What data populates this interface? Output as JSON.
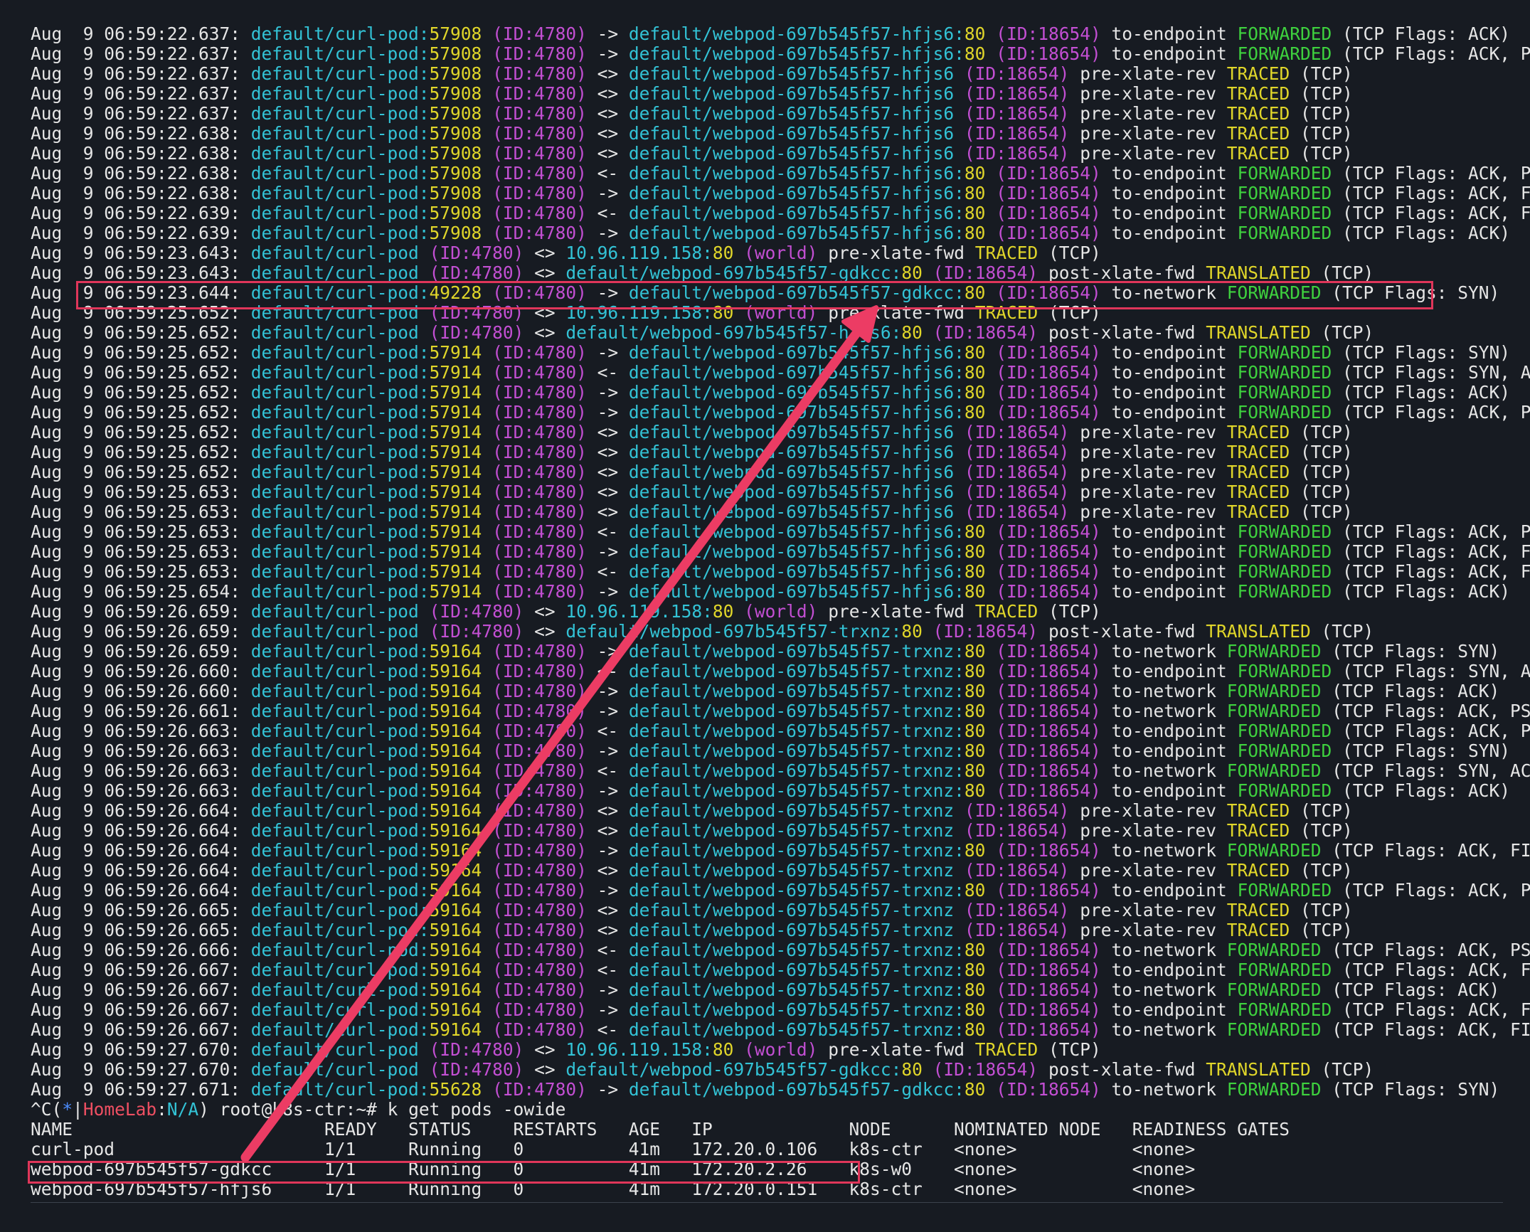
{
  "log_lines": [
    [
      "Aug  9 06:59:22.637:",
      "default/curl-pod:",
      "57908",
      "(ID:4780)",
      "->",
      "default/webpod-697b545f57-hfjs6:",
      "80",
      "(ID:18654)",
      "to-endpoint",
      "FORWARDED",
      "(TCP Flags: ACK)"
    ],
    [
      "Aug  9 06:59:22.637:",
      "default/curl-pod:",
      "57908",
      "(ID:4780)",
      "->",
      "default/webpod-697b545f57-hfjs6:",
      "80",
      "(ID:18654)",
      "to-endpoint",
      "FORWARDED",
      "(TCP Flags: ACK, PSH)"
    ],
    [
      "Aug  9 06:59:22.637:",
      "default/curl-pod:",
      "57908",
      "(ID:4780)",
      "<>",
      "default/webpod-697b545f57-hfjs6",
      "",
      "(ID:18654)",
      "pre-xlate-rev",
      "TRACED",
      "(TCP)"
    ],
    [
      "Aug  9 06:59:22.637:",
      "default/curl-pod:",
      "57908",
      "(ID:4780)",
      "<>",
      "default/webpod-697b545f57-hfjs6",
      "",
      "(ID:18654)",
      "pre-xlate-rev",
      "TRACED",
      "(TCP)"
    ],
    [
      "Aug  9 06:59:22.637:",
      "default/curl-pod:",
      "57908",
      "(ID:4780)",
      "<>",
      "default/webpod-697b545f57-hfjs6",
      "",
      "(ID:18654)",
      "pre-xlate-rev",
      "TRACED",
      "(TCP)"
    ],
    [
      "Aug  9 06:59:22.638:",
      "default/curl-pod:",
      "57908",
      "(ID:4780)",
      "<>",
      "default/webpod-697b545f57-hfjs6",
      "",
      "(ID:18654)",
      "pre-xlate-rev",
      "TRACED",
      "(TCP)"
    ],
    [
      "Aug  9 06:59:22.638:",
      "default/curl-pod:",
      "57908",
      "(ID:4780)",
      "<>",
      "default/webpod-697b545f57-hfjs6",
      "",
      "(ID:18654)",
      "pre-xlate-rev",
      "TRACED",
      "(TCP)"
    ],
    [
      "Aug  9 06:59:22.638:",
      "default/curl-pod:",
      "57908",
      "(ID:4780)",
      "<-",
      "default/webpod-697b545f57-hfjs6:",
      "80",
      "(ID:18654)",
      "to-endpoint",
      "FORWARDED",
      "(TCP Flags: ACK, PSH)"
    ],
    [
      "Aug  9 06:59:22.638:",
      "default/curl-pod:",
      "57908",
      "(ID:4780)",
      "->",
      "default/webpod-697b545f57-hfjs6:",
      "80",
      "(ID:18654)",
      "to-endpoint",
      "FORWARDED",
      "(TCP Flags: ACK, FIN)"
    ],
    [
      "Aug  9 06:59:22.639:",
      "default/curl-pod:",
      "57908",
      "(ID:4780)",
      "<-",
      "default/webpod-697b545f57-hfjs6:",
      "80",
      "(ID:18654)",
      "to-endpoint",
      "FORWARDED",
      "(TCP Flags: ACK, FIN)"
    ],
    [
      "Aug  9 06:59:22.639:",
      "default/curl-pod:",
      "57908",
      "(ID:4780)",
      "->",
      "default/webpod-697b545f57-hfjs6:",
      "80",
      "(ID:18654)",
      "to-endpoint",
      "FORWARDED",
      "(TCP Flags: ACK)"
    ],
    [
      "Aug  9 06:59:23.643:",
      "default/curl-pod",
      "",
      "(ID:4780)",
      "<>",
      "10.96.119.158:",
      "80",
      "(world)",
      "pre-xlate-fwd",
      "TRACED",
      "(TCP)"
    ],
    [
      "Aug  9 06:59:23.643:",
      "default/curl-pod",
      "",
      "(ID:4780)",
      "<>",
      "default/webpod-697b545f57-gdkcc:",
      "80",
      "(ID:18654)",
      "post-xlate-fwd",
      "TRANSLATED",
      "(TCP)"
    ],
    [
      "Aug  9 06:59:23.644:",
      "default/curl-pod:",
      "49228",
      "(ID:4780)",
      "->",
      "default/webpod-697b545f57-gdkcc:",
      "80",
      "(ID:18654)",
      "to-network",
      "FORWARDED",
      "(TCP Flags: SYN)"
    ],
    [
      "Aug  9 06:59:25.652:",
      "default/curl-pod",
      "",
      "(ID:4780)",
      "<>",
      "10.96.119.158:",
      "80",
      "(world)",
      "pre-xlate-fwd",
      "TRACED",
      "(TCP)"
    ],
    [
      "Aug  9 06:59:25.652:",
      "default/curl-pod",
      "",
      "(ID:4780)",
      "<>",
      "default/webpod-697b545f57-hfjs6:",
      "80",
      "(ID:18654)",
      "post-xlate-fwd",
      "TRANSLATED",
      "(TCP)"
    ],
    [
      "Aug  9 06:59:25.652:",
      "default/curl-pod:",
      "57914",
      "(ID:4780)",
      "->",
      "default/webpod-697b545f57-hfjs6:",
      "80",
      "(ID:18654)",
      "to-endpoint",
      "FORWARDED",
      "(TCP Flags: SYN)"
    ],
    [
      "Aug  9 06:59:25.652:",
      "default/curl-pod:",
      "57914",
      "(ID:4780)",
      "<-",
      "default/webpod-697b545f57-hfjs6:",
      "80",
      "(ID:18654)",
      "to-endpoint",
      "FORWARDED",
      "(TCP Flags: SYN, ACK)"
    ],
    [
      "Aug  9 06:59:25.652:",
      "default/curl-pod:",
      "57914",
      "(ID:4780)",
      "->",
      "default/webpod-697b545f57-hfjs6:",
      "80",
      "(ID:18654)",
      "to-endpoint",
      "FORWARDED",
      "(TCP Flags: ACK)"
    ],
    [
      "Aug  9 06:59:25.652:",
      "default/curl-pod:",
      "57914",
      "(ID:4780)",
      "->",
      "default/webpod-697b545f57-hfjs6:",
      "80",
      "(ID:18654)",
      "to-endpoint",
      "FORWARDED",
      "(TCP Flags: ACK, PSH)"
    ],
    [
      "Aug  9 06:59:25.652:",
      "default/curl-pod:",
      "57914",
      "(ID:4780)",
      "<>",
      "default/webpod-697b545f57-hfjs6",
      "",
      "(ID:18654)",
      "pre-xlate-rev",
      "TRACED",
      "(TCP)"
    ],
    [
      "Aug  9 06:59:25.652:",
      "default/curl-pod:",
      "57914",
      "(ID:4780)",
      "<>",
      "default/webpod-697b545f57-hfjs6",
      "",
      "(ID:18654)",
      "pre-xlate-rev",
      "TRACED",
      "(TCP)"
    ],
    [
      "Aug  9 06:59:25.652:",
      "default/curl-pod:",
      "57914",
      "(ID:4780)",
      "<>",
      "default/webpod-697b545f57-hfjs6",
      "",
      "(ID:18654)",
      "pre-xlate-rev",
      "TRACED",
      "(TCP)"
    ],
    [
      "Aug  9 06:59:25.653:",
      "default/curl-pod:",
      "57914",
      "(ID:4780)",
      "<>",
      "default/webpod-697b545f57-hfjs6",
      "",
      "(ID:18654)",
      "pre-xlate-rev",
      "TRACED",
      "(TCP)"
    ],
    [
      "Aug  9 06:59:25.653:",
      "default/curl-pod:",
      "57914",
      "(ID:4780)",
      "<>",
      "default/webpod-697b545f57-hfjs6",
      "",
      "(ID:18654)",
      "pre-xlate-rev",
      "TRACED",
      "(TCP)"
    ],
    [
      "Aug  9 06:59:25.653:",
      "default/curl-pod:",
      "57914",
      "(ID:4780)",
      "<-",
      "default/webpod-697b545f57-hfjs6:",
      "80",
      "(ID:18654)",
      "to-endpoint",
      "FORWARDED",
      "(TCP Flags: ACK, PSH)"
    ],
    [
      "Aug  9 06:59:25.653:",
      "default/curl-pod:",
      "57914",
      "(ID:4780)",
      "->",
      "default/webpod-697b545f57-hfjs6:",
      "80",
      "(ID:18654)",
      "to-endpoint",
      "FORWARDED",
      "(TCP Flags: ACK, FIN)"
    ],
    [
      "Aug  9 06:59:25.653:",
      "default/curl-pod:",
      "57914",
      "(ID:4780)",
      "<-",
      "default/webpod-697b545f57-hfjs6:",
      "80",
      "(ID:18654)",
      "to-endpoint",
      "FORWARDED",
      "(TCP Flags: ACK, FIN)"
    ],
    [
      "Aug  9 06:59:25.654:",
      "default/curl-pod:",
      "57914",
      "(ID:4780)",
      "->",
      "default/webpod-697b545f57-hfjs6:",
      "80",
      "(ID:18654)",
      "to-endpoint",
      "FORWARDED",
      "(TCP Flags: ACK)"
    ],
    [
      "Aug  9 06:59:26.659:",
      "default/curl-pod",
      "",
      "(ID:4780)",
      "<>",
      "10.96.119.158:",
      "80",
      "(world)",
      "pre-xlate-fwd",
      "TRACED",
      "(TCP)"
    ],
    [
      "Aug  9 06:59:26.659:",
      "default/curl-pod",
      "",
      "(ID:4780)",
      "<>",
      "default/webpod-697b545f57-trxnz:",
      "80",
      "(ID:18654)",
      "post-xlate-fwd",
      "TRANSLATED",
      "(TCP)"
    ],
    [
      "Aug  9 06:59:26.659:",
      "default/curl-pod:",
      "59164",
      "(ID:4780)",
      "->",
      "default/webpod-697b545f57-trxnz:",
      "80",
      "(ID:18654)",
      "to-network",
      "FORWARDED",
      "(TCP Flags: SYN)"
    ],
    [
      "Aug  9 06:59:26.660:",
      "default/curl-pod:",
      "59164",
      "(ID:4780)",
      "<-",
      "default/webpod-697b545f57-trxnz:",
      "80",
      "(ID:18654)",
      "to-endpoint",
      "FORWARDED",
      "(TCP Flags: SYN, ACK)"
    ],
    [
      "Aug  9 06:59:26.660:",
      "default/curl-pod:",
      "59164",
      "(ID:4780)",
      "->",
      "default/webpod-697b545f57-trxnz:",
      "80",
      "(ID:18654)",
      "to-network",
      "FORWARDED",
      "(TCP Flags: ACK)"
    ],
    [
      "Aug  9 06:59:26.661:",
      "default/curl-pod:",
      "59164",
      "(ID:4780)",
      "->",
      "default/webpod-697b545f57-trxnz:",
      "80",
      "(ID:18654)",
      "to-network",
      "FORWARDED",
      "(TCP Flags: ACK, PSH)"
    ],
    [
      "Aug  9 06:59:26.663:",
      "default/curl-pod:",
      "59164",
      "(ID:4780)",
      "<-",
      "default/webpod-697b545f57-trxnz:",
      "80",
      "(ID:18654)",
      "to-endpoint",
      "FORWARDED",
      "(TCP Flags: ACK, PSH)"
    ],
    [
      "Aug  9 06:59:26.663:",
      "default/curl-pod:",
      "59164",
      "(ID:4780)",
      "->",
      "default/webpod-697b545f57-trxnz:",
      "80",
      "(ID:18654)",
      "to-endpoint",
      "FORWARDED",
      "(TCP Flags: SYN)"
    ],
    [
      "Aug  9 06:59:26.663:",
      "default/curl-pod:",
      "59164",
      "(ID:4780)",
      "<-",
      "default/webpod-697b545f57-trxnz:",
      "80",
      "(ID:18654)",
      "to-network",
      "FORWARDED",
      "(TCP Flags: SYN, ACK)"
    ],
    [
      "Aug  9 06:59:26.663:",
      "default/curl-pod:",
      "59164",
      "(ID:4780)",
      "->",
      "default/webpod-697b545f57-trxnz:",
      "80",
      "(ID:18654)",
      "to-endpoint",
      "FORWARDED",
      "(TCP Flags: ACK)"
    ],
    [
      "Aug  9 06:59:26.664:",
      "default/curl-pod:",
      "59164",
      "(ID:4780)",
      "<>",
      "default/webpod-697b545f57-trxnz",
      "",
      "(ID:18654)",
      "pre-xlate-rev",
      "TRACED",
      "(TCP)"
    ],
    [
      "Aug  9 06:59:26.664:",
      "default/curl-pod:",
      "59164",
      "(ID:4780)",
      "<>",
      "default/webpod-697b545f57-trxnz",
      "",
      "(ID:18654)",
      "pre-xlate-rev",
      "TRACED",
      "(TCP)"
    ],
    [
      "Aug  9 06:59:26.664:",
      "default/curl-pod:",
      "59164",
      "(ID:4780)",
      "->",
      "default/webpod-697b545f57-trxnz:",
      "80",
      "(ID:18654)",
      "to-network",
      "FORWARDED",
      "(TCP Flags: ACK, FIN)"
    ],
    [
      "Aug  9 06:59:26.664:",
      "default/curl-pod:",
      "59164",
      "(ID:4780)",
      "<>",
      "default/webpod-697b545f57-trxnz",
      "",
      "(ID:18654)",
      "pre-xlate-rev",
      "TRACED",
      "(TCP)"
    ],
    [
      "Aug  9 06:59:26.664:",
      "default/curl-pod:",
      "59164",
      "(ID:4780)",
      "->",
      "default/webpod-697b545f57-trxnz:",
      "80",
      "(ID:18654)",
      "to-endpoint",
      "FORWARDED",
      "(TCP Flags: ACK, PSH)"
    ],
    [
      "Aug  9 06:59:26.665:",
      "default/curl-pod:",
      "59164",
      "(ID:4780)",
      "<>",
      "default/webpod-697b545f57-trxnz",
      "",
      "(ID:18654)",
      "pre-xlate-rev",
      "TRACED",
      "(TCP)"
    ],
    [
      "Aug  9 06:59:26.665:",
      "default/curl-pod:",
      "59164",
      "(ID:4780)",
      "<>",
      "default/webpod-697b545f57-trxnz",
      "",
      "(ID:18654)",
      "pre-xlate-rev",
      "TRACED",
      "(TCP)"
    ],
    [
      "Aug  9 06:59:26.666:",
      "default/curl-pod:",
      "59164",
      "(ID:4780)",
      "<-",
      "default/webpod-697b545f57-trxnz:",
      "80",
      "(ID:18654)",
      "to-network",
      "FORWARDED",
      "(TCP Flags: ACK, PSH)"
    ],
    [
      "Aug  9 06:59:26.667:",
      "default/curl-pod:",
      "59164",
      "(ID:4780)",
      "<-",
      "default/webpod-697b545f57-trxnz:",
      "80",
      "(ID:18654)",
      "to-endpoint",
      "FORWARDED",
      "(TCP Flags: ACK, FIN)"
    ],
    [
      "Aug  9 06:59:26.667:",
      "default/curl-pod:",
      "59164",
      "(ID:4780)",
      "->",
      "default/webpod-697b545f57-trxnz:",
      "80",
      "(ID:18654)",
      "to-network",
      "FORWARDED",
      "(TCP Flags: ACK)"
    ],
    [
      "Aug  9 06:59:26.667:",
      "default/curl-pod:",
      "59164",
      "(ID:4780)",
      "->",
      "default/webpod-697b545f57-trxnz:",
      "80",
      "(ID:18654)",
      "to-endpoint",
      "FORWARDED",
      "(TCP Flags: ACK, FIN)"
    ],
    [
      "Aug  9 06:59:26.667:",
      "default/curl-pod:",
      "59164",
      "(ID:4780)",
      "<-",
      "default/webpod-697b545f57-trxnz:",
      "80",
      "(ID:18654)",
      "to-network",
      "FORWARDED",
      "(TCP Flags: ACK, FIN)"
    ],
    [
      "Aug  9 06:59:27.670:",
      "default/curl-pod",
      "",
      "(ID:4780)",
      "<>",
      "10.96.119.158:",
      "80",
      "(world)",
      "pre-xlate-fwd",
      "TRACED",
      "(TCP)"
    ],
    [
      "Aug  9 06:59:27.670:",
      "default/curl-pod",
      "",
      "(ID:4780)",
      "<>",
      "default/webpod-697b545f57-gdkcc:",
      "80",
      "(ID:18654)",
      "post-xlate-fwd",
      "TRANSLATED",
      "(TCP)"
    ],
    [
      "Aug  9 06:59:27.671:",
      "default/curl-pod:",
      "55628",
      "(ID:4780)",
      "->",
      "default/webpod-697b545f57-gdkcc:",
      "80",
      "(ID:18654)",
      "to-network",
      "FORWARDED",
      "(TCP Flags: SYN)"
    ]
  ],
  "prompt": {
    "interrupt": "^C",
    "open": "(",
    "star": "*",
    "pipe": "|",
    "context": "HomeLab",
    "colon": ":",
    "namespace": "N/A",
    "close": ")",
    "user_host": " root@k8s-ctr:~# ",
    "command": "k get pods -owide"
  },
  "pods_table": {
    "header": "NAME                        READY   STATUS    RESTARTS   AGE   IP             NODE      NOMINATED NODE   READINESS GATES",
    "rows": [
      "curl-pod                    1/1     Running   0          41m   172.20.0.106   k8s-ctr   <none>           <none>",
      "webpod-697b545f57-gdkcc     1/1     Running   0          41m   172.20.2.26    k8s-w0    <none>           <none>",
      "webpod-697b545f57-hfjs6     1/1     Running   0          41m   172.20.0.151   k8s-ctr   <none>           <none>"
    ]
  },
  "colors": {
    "background": "#171b22",
    "pod": "#33c3d6",
    "port": "#e0d62a",
    "identity": "#c34fd3",
    "verdict_forwarded": "#3ed13e",
    "verdict_other": "#e0d62a",
    "highlight": "#e0365a"
  }
}
